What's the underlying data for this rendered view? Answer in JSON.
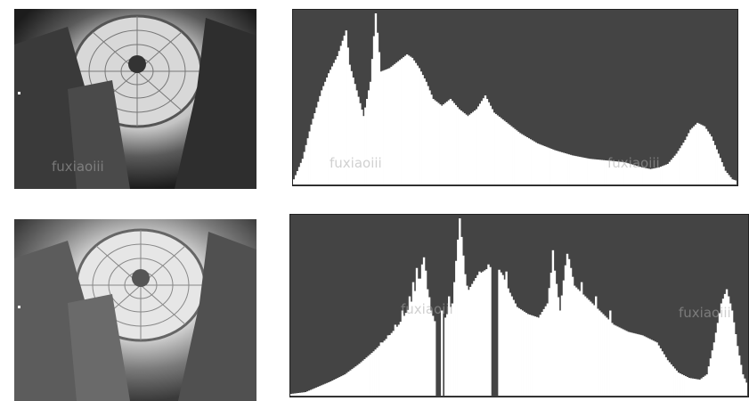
{
  "watermark": "fuxiaoiii",
  "colors": {
    "histogram_background": "#444444",
    "histogram_fill": "#ffffff",
    "page_background": "#ffffff"
  },
  "chart_data": [
    {
      "type": "bar",
      "title": "",
      "xlabel": "",
      "ylabel": "",
      "xlim": [
        0,
        255
      ],
      "ylim": [
        0,
        100
      ],
      "grid": false,
      "legend": "none",
      "profile": [
        [
          0,
          3
        ],
        [
          5,
          15
        ],
        [
          10,
          35
        ],
        [
          16,
          55
        ],
        [
          20,
          65
        ],
        [
          25,
          75
        ],
        [
          30,
          90
        ],
        [
          32,
          70
        ],
        [
          36,
          55
        ],
        [
          40,
          40
        ],
        [
          44,
          60
        ],
        [
          47,
          100
        ],
        [
          50,
          66
        ],
        [
          55,
          68
        ],
        [
          60,
          72
        ],
        [
          65,
          76
        ],
        [
          68,
          74
        ],
        [
          72,
          68
        ],
        [
          76,
          60
        ],
        [
          80,
          50
        ],
        [
          85,
          46
        ],
        [
          90,
          50
        ],
        [
          95,
          44
        ],
        [
          100,
          40
        ],
        [
          105,
          44
        ],
        [
          110,
          52
        ],
        [
          115,
          42
        ],
        [
          120,
          38
        ],
        [
          125,
          34
        ],
        [
          130,
          30
        ],
        [
          140,
          24
        ],
        [
          150,
          20
        ],
        [
          160,
          17
        ],
        [
          170,
          15
        ],
        [
          180,
          14
        ],
        [
          190,
          13
        ],
        [
          200,
          10
        ],
        [
          205,
          9
        ],
        [
          210,
          10
        ],
        [
          215,
          12
        ],
        [
          220,
          18
        ],
        [
          225,
          26
        ],
        [
          228,
          32
        ],
        [
          232,
          36
        ],
        [
          236,
          34
        ],
        [
          240,
          28
        ],
        [
          244,
          18
        ],
        [
          248,
          8
        ],
        [
          252,
          3
        ],
        [
          255,
          2
        ]
      ]
    },
    {
      "type": "bar",
      "title": "",
      "xlabel": "",
      "ylabel": "",
      "xlim": [
        0,
        255
      ],
      "ylim": [
        0,
        100
      ],
      "grid": false,
      "legend": "none",
      "profile": [
        [
          0,
          1
        ],
        [
          8,
          2
        ],
        [
          15,
          5
        ],
        [
          22,
          8
        ],
        [
          30,
          12
        ],
        [
          38,
          18
        ],
        [
          46,
          25
        ],
        [
          54,
          33
        ],
        [
          60,
          40
        ],
        [
          66,
          50
        ],
        [
          70,
          62
        ],
        [
          74,
          78
        ],
        [
          78,
          48
        ],
        [
          82,
          36
        ],
        [
          86,
          44
        ],
        [
          90,
          52
        ],
        [
          94,
          100
        ],
        [
          98,
          58
        ],
        [
          104,
          68
        ],
        [
          110,
          72
        ],
        [
          114,
          74
        ],
        [
          118,
          68
        ],
        [
          122,
          58
        ],
        [
          126,
          50
        ],
        [
          132,
          46
        ],
        [
          138,
          44
        ],
        [
          143,
          52
        ],
        [
          146,
          78
        ],
        [
          150,
          48
        ],
        [
          154,
          82
        ],
        [
          158,
          62
        ],
        [
          162,
          58
        ],
        [
          168,
          52
        ],
        [
          174,
          46
        ],
        [
          180,
          40
        ],
        [
          188,
          36
        ],
        [
          196,
          34
        ],
        [
          204,
          30
        ],
        [
          210,
          20
        ],
        [
          216,
          13
        ],
        [
          222,
          10
        ],
        [
          228,
          9
        ],
        [
          232,
          12
        ],
        [
          236,
          30
        ],
        [
          240,
          52
        ],
        [
          243,
          60
        ],
        [
          246,
          48
        ],
        [
          249,
          28
        ],
        [
          252,
          12
        ],
        [
          255,
          5
        ]
      ],
      "spikes": [
        [
          46,
          25
        ],
        [
          50,
          30
        ],
        [
          54,
          34
        ],
        [
          58,
          40
        ],
        [
          62,
          48
        ],
        [
          66,
          56
        ],
        [
          68,
          64
        ],
        [
          70,
          72
        ],
        [
          72,
          66
        ],
        [
          74,
          78
        ],
        [
          76,
          60
        ],
        [
          80,
          42
        ],
        [
          84,
          48
        ],
        [
          88,
          56
        ],
        [
          94,
          100
        ],
        [
          98,
          62
        ],
        [
          105,
          70
        ],
        [
          110,
          74
        ],
        [
          120,
          70
        ],
        [
          146,
          82
        ],
        [
          154,
          80
        ],
        [
          162,
          64
        ],
        [
          170,
          56
        ],
        [
          178,
          48
        ]
      ],
      "gaps": [
        [
          80,
          86
        ],
        [
          112,
          116
        ]
      ]
    }
  ]
}
